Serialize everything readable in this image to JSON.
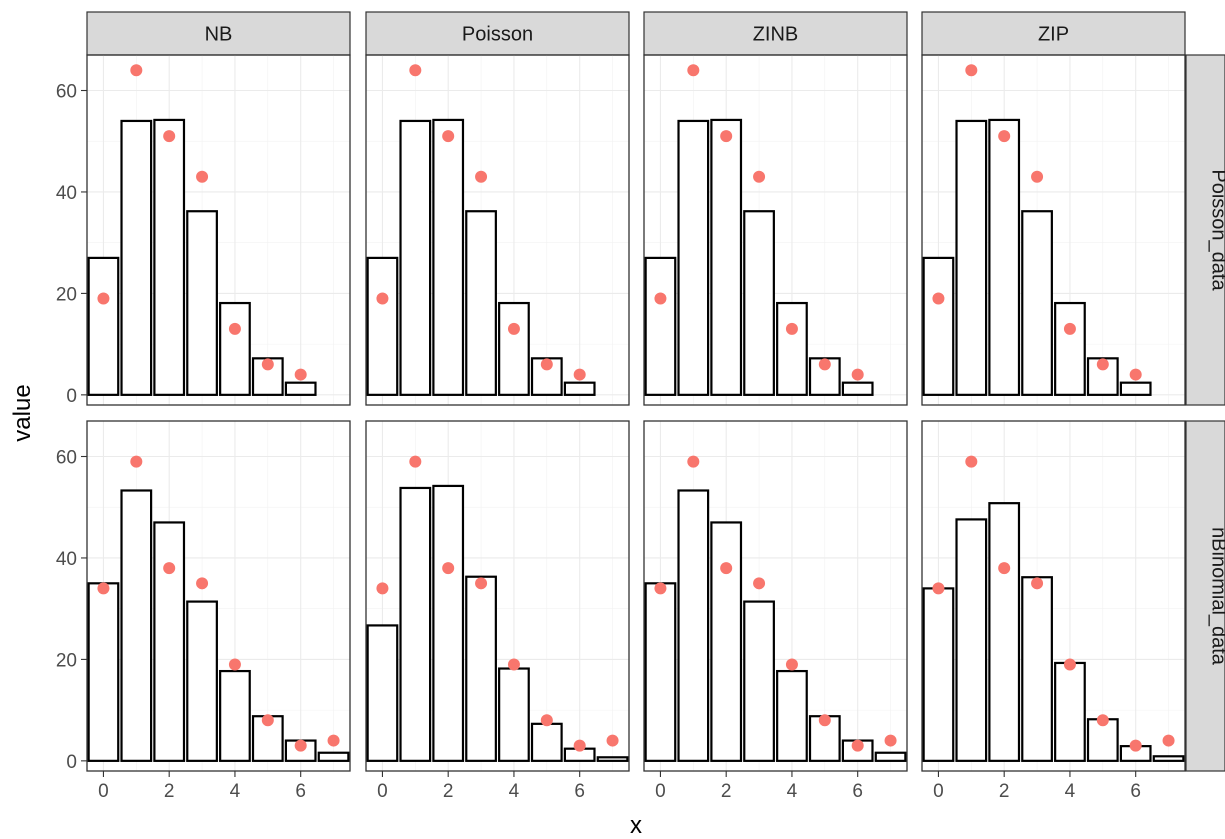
{
  "chart_data": {
    "type": "bar",
    "facet_layout": "grid",
    "column_facets": [
      "NB",
      "Poisson",
      "ZINB",
      "ZIP"
    ],
    "row_facets": [
      "Poisson_data",
      "nBinomial_data"
    ],
    "xlabel": "x",
    "ylabel": "value",
    "xlim": [
      -0.5,
      7.5
    ],
    "ylim": [
      -2,
      67
    ],
    "x_ticks": [
      0,
      2,
      4,
      6
    ],
    "y_ticks": [
      0,
      20,
      40,
      60
    ],
    "grid": true,
    "series_styles": {
      "bars": {
        "fill": "#ffffff",
        "stroke": "#000000"
      },
      "points": {
        "color": "#f8766d"
      }
    },
    "panels": [
      {
        "row": "Poisson_data",
        "col": "NB",
        "bars": {
          "x": [
            0,
            1,
            2,
            3,
            4,
            5,
            6
          ],
          "values": [
            27,
            54,
            54.2,
            36.2,
            18.1,
            7.2,
            2.4
          ]
        },
        "points": {
          "x": [
            0,
            1,
            2,
            3,
            4,
            5,
            6
          ],
          "values": [
            19,
            64,
            51,
            43,
            13,
            6,
            4
          ]
        }
      },
      {
        "row": "Poisson_data",
        "col": "Poisson",
        "bars": {
          "x": [
            0,
            1,
            2,
            3,
            4,
            5,
            6
          ],
          "values": [
            27,
            54,
            54.2,
            36.2,
            18.1,
            7.2,
            2.4
          ]
        },
        "points": {
          "x": [
            0,
            1,
            2,
            3,
            4,
            5,
            6
          ],
          "values": [
            19,
            64,
            51,
            43,
            13,
            6,
            4
          ]
        }
      },
      {
        "row": "Poisson_data",
        "col": "ZINB",
        "bars": {
          "x": [
            0,
            1,
            2,
            3,
            4,
            5,
            6
          ],
          "values": [
            27,
            54,
            54.2,
            36.2,
            18.1,
            7.2,
            2.4
          ]
        },
        "points": {
          "x": [
            0,
            1,
            2,
            3,
            4,
            5,
            6
          ],
          "values": [
            19,
            64,
            51,
            43,
            13,
            6,
            4
          ]
        }
      },
      {
        "row": "Poisson_data",
        "col": "ZIP",
        "bars": {
          "x": [
            0,
            1,
            2,
            3,
            4,
            5,
            6
          ],
          "values": [
            27,
            54,
            54.2,
            36.2,
            18.1,
            7.2,
            2.4
          ]
        },
        "points": {
          "x": [
            0,
            1,
            2,
            3,
            4,
            5,
            6
          ],
          "values": [
            19,
            64,
            51,
            43,
            13,
            6,
            4
          ]
        }
      },
      {
        "row": "nBinomial_data",
        "col": "NB",
        "bars": {
          "x": [
            0,
            1,
            2,
            3,
            4,
            5,
            6,
            7
          ],
          "values": [
            35,
            53.3,
            47,
            31.4,
            17.7,
            8.8,
            4,
            1.6
          ]
        },
        "points": {
          "x": [
            0,
            1,
            2,
            3,
            4,
            5,
            6,
            7
          ],
          "values": [
            34,
            59,
            38,
            35,
            19,
            8,
            3,
            4
          ]
        }
      },
      {
        "row": "nBinomial_data",
        "col": "Poisson",
        "bars": {
          "x": [
            0,
            1,
            2,
            3,
            4,
            5,
            6,
            7
          ],
          "values": [
            26.7,
            53.8,
            54.2,
            36.3,
            18.2,
            7.3,
            2.4,
            0.7
          ]
        },
        "points": {
          "x": [
            0,
            1,
            2,
            3,
            4,
            5,
            6,
            7
          ],
          "values": [
            34,
            59,
            38,
            35,
            19,
            8,
            3,
            4
          ]
        }
      },
      {
        "row": "nBinomial_data",
        "col": "ZINB",
        "bars": {
          "x": [
            0,
            1,
            2,
            3,
            4,
            5,
            6,
            7
          ],
          "values": [
            35,
            53.3,
            47,
            31.4,
            17.7,
            8.8,
            4,
            1.6
          ]
        },
        "points": {
          "x": [
            0,
            1,
            2,
            3,
            4,
            5,
            6,
            7
          ],
          "values": [
            34,
            59,
            38,
            35,
            19,
            8,
            3,
            4
          ]
        }
      },
      {
        "row": "nBinomial_data",
        "col": "ZIP",
        "bars": {
          "x": [
            0,
            1,
            2,
            3,
            4,
            5,
            6,
            7
          ],
          "values": [
            34,
            47.6,
            50.8,
            36.2,
            19.3,
            8.2,
            2.9,
            0.9
          ]
        },
        "points": {
          "x": [
            0,
            1,
            2,
            3,
            4,
            5,
            6,
            7
          ],
          "values": [
            34,
            59,
            38,
            35,
            19,
            8,
            3,
            4
          ]
        }
      }
    ]
  }
}
